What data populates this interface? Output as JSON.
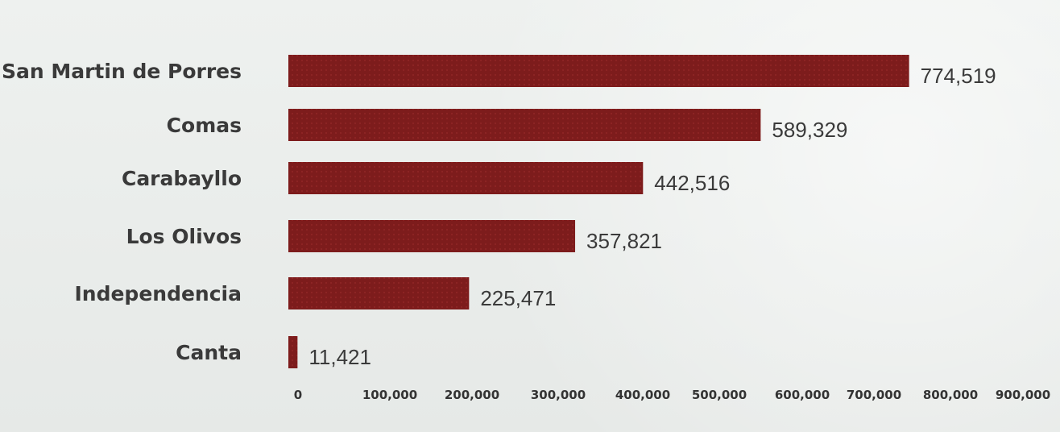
{
  "chart_data": {
    "type": "bar",
    "orientation": "horizontal",
    "categories": [
      "San Martin de Porres",
      "Comas",
      "Carabayllo",
      "Los Olivos",
      "Independencia",
      "Canta"
    ],
    "values": [
      774519,
      589329,
      442516,
      357821,
      225471,
      11421
    ],
    "value_labels": [
      "774,519",
      "589,329",
      "442,516",
      "357,821",
      "225,471",
      "11,421"
    ],
    "xlim": [
      0,
      900000
    ],
    "x_ticks": [
      0,
      100000,
      200000,
      300000,
      400000,
      500000,
      600000,
      700000,
      800000,
      900000
    ],
    "x_tick_labels": [
      "0",
      "100,000",
      "200,000",
      "300,000",
      "400,000",
      "500,000",
      "600,000",
      "700,000",
      "800,000",
      "900,000"
    ],
    "grid": false,
    "legend": "none",
    "colors": {
      "bar": "#7d1c1c",
      "text": "#3a3a3a"
    }
  }
}
